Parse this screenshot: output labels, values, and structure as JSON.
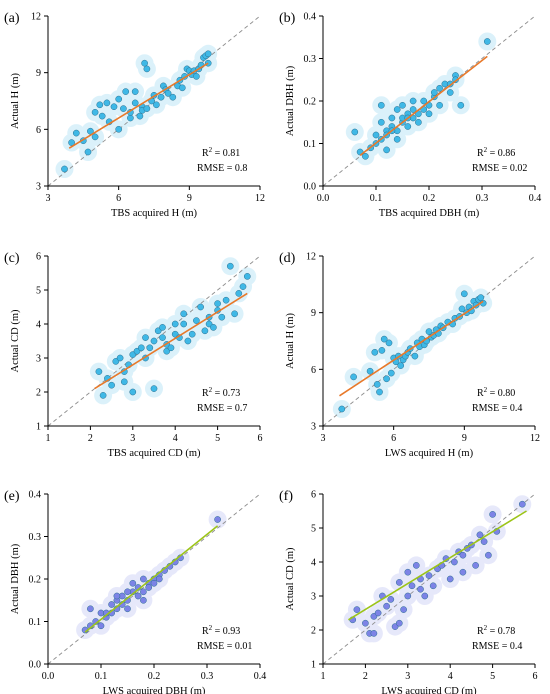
{
  "chart_data": [
    {
      "type": "scatter",
      "panel_label": "(a)",
      "xlabel": "TBS acquired H (m)",
      "ylabel": "Actual H (m)",
      "xlim": [
        3,
        12
      ],
      "ylim": [
        3,
        12
      ],
      "xticks": [
        "3",
        "6",
        "9",
        "12"
      ],
      "yticks": [
        "3",
        "6",
        "9",
        "12"
      ],
      "xtick_values": [
        3,
        6,
        9,
        12
      ],
      "ytick_values": [
        3,
        6,
        9,
        12
      ],
      "stats": {
        "r2_label": "R",
        "r2_value": "= 0.81",
        "rmse": "RMSE = 0.8"
      },
      "point_color": "#3fb8e6",
      "fit_color": "#e8792a",
      "fit_line": {
        "x": [
          3.9,
          9.8
        ],
        "y": [
          5.0,
          9.5
        ]
      },
      "points": {
        "x": [
          3.7,
          4.0,
          4.2,
          4.5,
          4.7,
          4.8,
          5.0,
          5.0,
          5.2,
          5.3,
          5.5,
          5.6,
          5.8,
          6.0,
          6.0,
          6.2,
          6.3,
          6.5,
          6.5,
          6.7,
          6.9,
          7.0,
          7.0,
          7.1,
          7.2,
          7.2,
          7.4,
          7.5,
          7.6,
          7.8,
          7.9,
          8.0,
          8.1,
          8.3,
          8.5,
          8.6,
          8.7,
          8.8,
          8.9,
          9.0,
          9.1,
          9.2,
          9.3,
          9.4,
          9.5,
          9.6,
          9.7,
          9.8,
          9.8,
          6.7
        ],
        "y": [
          3.9,
          5.3,
          5.8,
          5.4,
          4.8,
          5.9,
          5.6,
          6.9,
          7.3,
          6.7,
          7.4,
          6.4,
          7.2,
          6.0,
          7.6,
          7.1,
          8.0,
          6.6,
          6.9,
          7.4,
          6.7,
          7.2,
          7.0,
          9.5,
          9.2,
          7.1,
          7.5,
          7.8,
          7.3,
          7.7,
          8.3,
          8.1,
          7.9,
          7.7,
          8.3,
          8.6,
          8.2,
          8.8,
          9.2,
          9.1,
          8.9,
          9.1,
          8.8,
          9.2,
          9.4,
          9.8,
          9.9,
          9.5,
          10.0,
          8.0
        ]
      }
    },
    {
      "type": "scatter",
      "panel_label": "(b)",
      "xlabel": "TBS acquired DBH (m)",
      "ylabel": "Actual DBH (m)",
      "xlim": [
        0.0,
        0.4
      ],
      "ylim": [
        0.0,
        0.4
      ],
      "xticks": [
        "0.0",
        "0.1",
        "0.2",
        "0.3",
        "0.4"
      ],
      "yticks": [
        "0.0",
        "0.1",
        "0.2",
        "0.3",
        "0.4"
      ],
      "xtick_values": [
        0.0,
        0.1,
        0.2,
        0.3,
        0.4
      ],
      "ytick_values": [
        0.0,
        0.1,
        0.2,
        0.3,
        0.4
      ],
      "stats": {
        "r2_label": "R",
        "r2_value": "= 0.86",
        "rmse": "RMSE = 0.02"
      },
      "point_color": "#3fb8e6",
      "fit_color": "#e8792a",
      "fit_line": {
        "x": [
          0.07,
          0.31
        ],
        "y": [
          0.072,
          0.305
        ]
      },
      "points": {
        "x": [
          0.06,
          0.07,
          0.08,
          0.09,
          0.1,
          0.1,
          0.11,
          0.11,
          0.12,
          0.12,
          0.12,
          0.13,
          0.13,
          0.14,
          0.14,
          0.15,
          0.15,
          0.15,
          0.16,
          0.16,
          0.17,
          0.17,
          0.17,
          0.18,
          0.18,
          0.19,
          0.19,
          0.2,
          0.2,
          0.21,
          0.21,
          0.22,
          0.22,
          0.23,
          0.24,
          0.24,
          0.25,
          0.25,
          0.26,
          0.31,
          0.11,
          0.13,
          0.16,
          0.14
        ],
        "y": [
          0.127,
          0.08,
          0.07,
          0.09,
          0.1,
          0.12,
          0.11,
          0.19,
          0.13,
          0.12,
          0.085,
          0.14,
          0.16,
          0.13,
          0.18,
          0.15,
          0.19,
          0.16,
          0.17,
          0.14,
          0.16,
          0.2,
          0.18,
          0.17,
          0.15,
          0.2,
          0.18,
          0.19,
          0.17,
          0.21,
          0.22,
          0.19,
          0.23,
          0.24,
          0.24,
          0.22,
          0.26,
          0.25,
          0.19,
          0.34,
          0.15,
          0.13,
          0.16,
          0.11
        ]
      }
    },
    {
      "type": "scatter",
      "panel_label": "(c)",
      "xlabel": "TBS acquired CD (m)",
      "ylabel": "Actual CD (m)",
      "xlim": [
        1,
        6
      ],
      "ylim": [
        1,
        6
      ],
      "xticks": [
        "1",
        "2",
        "3",
        "4",
        "5",
        "6"
      ],
      "yticks": [
        "1",
        "2",
        "3",
        "4",
        "5",
        "6"
      ],
      "xtick_values": [
        1,
        2,
        3,
        4,
        5,
        6
      ],
      "ytick_values": [
        1,
        2,
        3,
        4,
        5,
        6
      ],
      "stats": {
        "r2_label": "R",
        "r2_value": "= 0.73",
        "rmse": "RMSE = 0.7"
      },
      "point_color": "#3fb8e6",
      "fit_color": "#e8792a",
      "fit_line": {
        "x": [
          2.1,
          5.7
        ],
        "y": [
          2.1,
          4.9
        ]
      },
      "points": {
        "x": [
          2.2,
          2.3,
          2.4,
          2.5,
          2.6,
          2.7,
          2.8,
          2.8,
          2.9,
          3.0,
          3.0,
          3.1,
          3.2,
          3.3,
          3.3,
          3.4,
          3.5,
          3.5,
          3.6,
          3.7,
          3.7,
          3.8,
          3.8,
          3.9,
          4.0,
          4.0,
          4.1,
          4.2,
          4.2,
          4.3,
          4.4,
          4.5,
          4.6,
          4.7,
          4.8,
          4.8,
          4.9,
          5.0,
          5.0,
          5.1,
          5.2,
          5.3,
          5.4,
          5.5,
          5.6,
          5.7
        ],
        "y": [
          2.6,
          1.9,
          2.4,
          2.2,
          2.9,
          3.0,
          2.3,
          2.6,
          2.8,
          3.1,
          2.0,
          3.2,
          3.3,
          3.0,
          3.6,
          3.3,
          3.5,
          2.1,
          3.8,
          3.6,
          3.9,
          3.2,
          3.4,
          3.3,
          3.7,
          4.0,
          3.6,
          4.3,
          4.0,
          3.5,
          3.7,
          4.1,
          4.5,
          3.8,
          4.2,
          4.0,
          3.9,
          4.4,
          4.6,
          4.2,
          4.7,
          5.7,
          4.3,
          4.9,
          5.1,
          5.4
        ]
      }
    },
    {
      "type": "scatter",
      "panel_label": "(d)",
      "xlabel": "LWS acquired H (m)",
      "ylabel": "Actual H (m)",
      "xlim": [
        3,
        12
      ],
      "ylim": [
        3,
        12
      ],
      "xticks": [
        "3",
        "6",
        "9",
        "12"
      ],
      "yticks": [
        "3",
        "6",
        "9",
        "12"
      ],
      "xtick_values": [
        3,
        6,
        9,
        12
      ],
      "ytick_values": [
        3,
        6,
        9,
        12
      ],
      "stats": {
        "r2_label": "R",
        "r2_value": "= 0.80",
        "rmse": "RMSE = 0.4"
      },
      "point_color": "#3fb8e6",
      "fit_color": "#e8792a",
      "fit_line": {
        "x": [
          3.7,
          9.8
        ],
        "y": [
          4.6,
          9.6
        ]
      },
      "points": {
        "x": [
          3.8,
          4.3,
          5.0,
          5.2,
          5.3,
          5.5,
          5.6,
          5.8,
          5.9,
          6.0,
          6.1,
          6.2,
          6.3,
          6.4,
          6.5,
          6.6,
          6.7,
          6.9,
          7.0,
          7.1,
          7.2,
          7.3,
          7.4,
          7.5,
          7.6,
          7.7,
          7.8,
          7.9,
          8.0,
          8.1,
          8.3,
          8.5,
          8.6,
          8.8,
          8.9,
          9.0,
          9.1,
          9.2,
          9.3,
          9.4,
          9.5,
          9.6,
          9.7,
          9.8,
          5.4,
          5.7
        ],
        "y": [
          3.9,
          5.6,
          5.9,
          6.9,
          5.2,
          7.0,
          7.6,
          7.4,
          5.8,
          6.6,
          6.4,
          6.7,
          6.2,
          6.5,
          6.7,
          6.9,
          7.1,
          6.7,
          7.4,
          7.2,
          7.6,
          7.3,
          7.5,
          8.0,
          7.7,
          7.8,
          8.1,
          7.9,
          8.3,
          8.2,
          8.5,
          8.4,
          8.7,
          8.8,
          9.2,
          10.0,
          9.0,
          9.3,
          9.1,
          9.6,
          9.4,
          9.7,
          9.8,
          9.5,
          4.8,
          5.5
        ]
      }
    },
    {
      "type": "scatter",
      "panel_label": "(e)",
      "xlabel": "LWS acquired DBH (m)",
      "ylabel": "Actual DBH (m)",
      "xlim": [
        0.0,
        0.4
      ],
      "ylim": [
        0.0,
        0.4
      ],
      "xticks": [
        "0.0",
        "0.1",
        "0.2",
        "0.3",
        "0.4"
      ],
      "yticks": [
        "0.0",
        "0.1",
        "0.2",
        "0.3",
        "0.4"
      ],
      "xtick_values": [
        0.0,
        0.1,
        0.2,
        0.3,
        0.4
      ],
      "ytick_values": [
        0.0,
        0.1,
        0.2,
        0.3,
        0.4
      ],
      "stats": {
        "r2_label": "R",
        "r2_value": "= 0.93",
        "rmse": "RMSE = 0.01"
      },
      "point_color": "#7c83e6",
      "fit_color": "#9cc418",
      "fit_line": {
        "x": [
          0.07,
          0.32
        ],
        "y": [
          0.075,
          0.325
        ]
      },
      "points": {
        "x": [
          0.07,
          0.08,
          0.09,
          0.1,
          0.1,
          0.11,
          0.12,
          0.12,
          0.13,
          0.13,
          0.14,
          0.14,
          0.15,
          0.15,
          0.16,
          0.16,
          0.17,
          0.17,
          0.18,
          0.18,
          0.19,
          0.19,
          0.2,
          0.2,
          0.21,
          0.22,
          0.23,
          0.24,
          0.25,
          0.32,
          0.08,
          0.11,
          0.13,
          0.15,
          0.18,
          0.21
        ],
        "y": [
          0.08,
          0.09,
          0.1,
          0.09,
          0.12,
          0.11,
          0.12,
          0.14,
          0.13,
          0.15,
          0.14,
          0.16,
          0.15,
          0.13,
          0.17,
          0.19,
          0.16,
          0.18,
          0.2,
          0.17,
          0.19,
          0.18,
          0.2,
          0.19,
          0.21,
          0.22,
          0.23,
          0.24,
          0.25,
          0.34,
          0.13,
          0.12,
          0.16,
          0.17,
          0.15,
          0.2
        ]
      }
    },
    {
      "type": "scatter",
      "panel_label": "(f)",
      "xlabel": "LWS acquired CD (m)",
      "ylabel": "Actual CD (m)",
      "xlim": [
        1,
        6
      ],
      "ylim": [
        1,
        6
      ],
      "xticks": [
        "1",
        "2",
        "3",
        "4",
        "5",
        "6"
      ],
      "yticks": [
        "1",
        "2",
        "3",
        "4",
        "5",
        "6"
      ],
      "xtick_values": [
        1,
        2,
        3,
        4,
        5,
        6
      ],
      "ytick_values": [
        1,
        2,
        3,
        4,
        5,
        6
      ],
      "stats": {
        "r2_label": "R",
        "r2_value": "= 0.78",
        "rmse": "RMSE = 0.4"
      },
      "point_color": "#7c83e6",
      "fit_color": "#9cc418",
      "fit_line": {
        "x": [
          1.6,
          5.8
        ],
        "y": [
          2.3,
          5.5
        ]
      },
      "points": {
        "x": [
          1.7,
          1.8,
          2.0,
          2.1,
          2.2,
          2.2,
          2.3,
          2.4,
          2.5,
          2.6,
          2.7,
          2.8,
          2.8,
          2.9,
          3.0,
          3.0,
          3.1,
          3.2,
          3.3,
          3.3,
          3.4,
          3.5,
          3.6,
          3.7,
          3.8,
          3.9,
          4.0,
          4.1,
          4.2,
          4.3,
          4.3,
          4.4,
          4.5,
          4.6,
          4.7,
          4.8,
          4.9,
          5.0,
          5.1,
          5.7
        ],
        "y": [
          2.3,
          2.6,
          2.2,
          1.9,
          2.4,
          1.9,
          2.5,
          3.0,
          2.7,
          2.9,
          2.1,
          3.4,
          2.2,
          2.6,
          3.0,
          3.7,
          3.3,
          3.9,
          3.2,
          3.5,
          3.0,
          3.6,
          3.3,
          3.8,
          3.9,
          4.1,
          3.5,
          4.0,
          4.3,
          4.2,
          3.7,
          4.4,
          4.5,
          3.9,
          4.8,
          4.6,
          4.2,
          5.4,
          4.9,
          5.7
        ]
      }
    }
  ]
}
